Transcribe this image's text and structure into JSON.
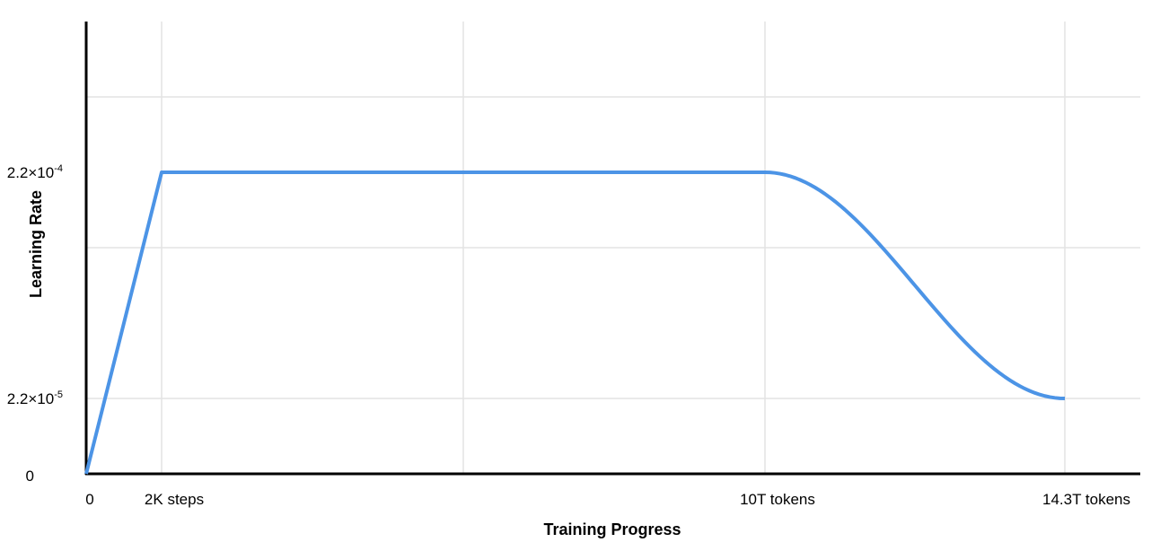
{
  "chart_data": {
    "type": "line",
    "title": "",
    "xlabel": "Training Progress",
    "ylabel": "Learning Rate",
    "x_tick_labels": [
      "0",
      "2K steps",
      "10T tokens",
      "14.3T tokens"
    ],
    "y_tick_labels": [
      {
        "value": 0,
        "base": "0",
        "exp": ""
      },
      {
        "value": 2.2e-05,
        "base": "2.2×10",
        "exp": "-5"
      },
      {
        "value": 0.00022,
        "base": "2.2×10",
        "exp": "-4"
      }
    ],
    "grid": true,
    "legend": "none",
    "series": [
      {
        "color": "#4c94e6",
        "points": [
          {
            "x": "0",
            "y": 0
          },
          {
            "x": "2K steps",
            "y": 0.00022
          },
          {
            "x": "10T tokens",
            "y": 0.00022
          },
          {
            "x": "14.3T tokens",
            "y": 2.2e-05
          }
        ],
        "segments": [
          "linear warmup",
          "constant",
          "cosine decay"
        ]
      }
    ]
  }
}
